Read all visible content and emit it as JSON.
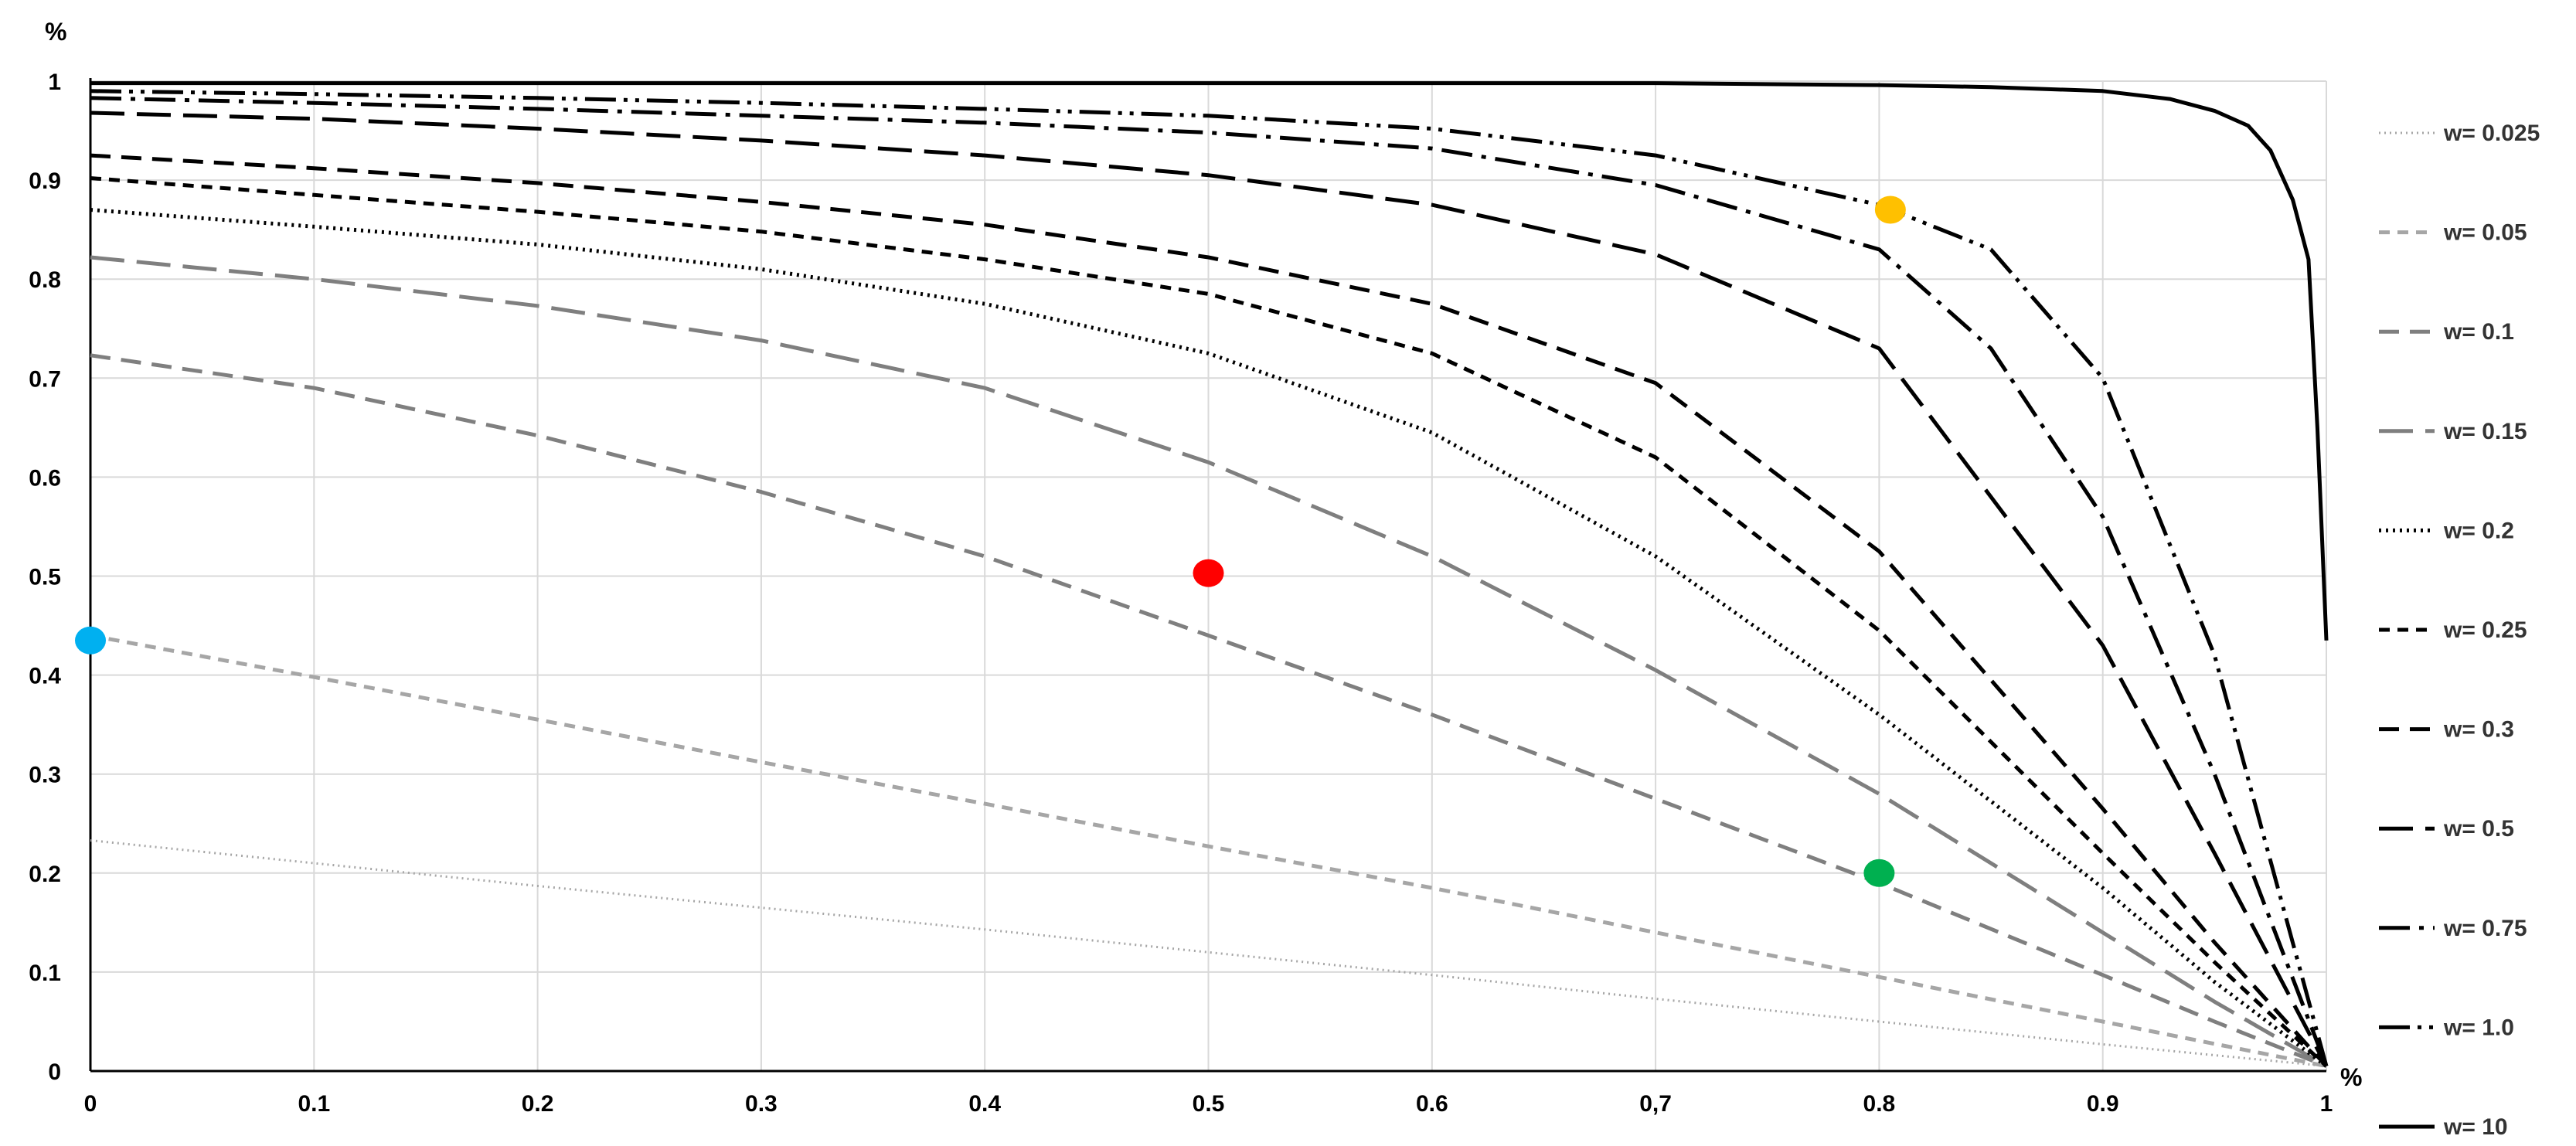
{
  "chart_data": {
    "type": "line",
    "title": "",
    "xlabel": "%",
    "ylabel": "%",
    "xlim": [
      0,
      1
    ],
    "ylim": [
      0,
      1
    ],
    "x_ticks": [
      "0",
      "0.1",
      "0.2",
      "0.3",
      "0.4",
      "0.5",
      "0.6",
      "0,7",
      "0.8",
      "0.9",
      "1"
    ],
    "y_ticks": [
      "0",
      "0.1",
      "0.2",
      "0.3",
      "0.4",
      "0.5",
      "0.6",
      "0.7",
      "0.8",
      "0.9",
      "1"
    ],
    "grid": true,
    "legend_position": "right",
    "series": [
      {
        "name": "w= 0.025",
        "color": "#a6a6a6",
        "style": "dot-fine",
        "x": [
          0,
          0.1,
          0.2,
          0.3,
          0.4,
          0.5,
          0.6,
          0.7,
          0.8,
          0.9,
          1.0
        ],
        "y": [
          0.233,
          0.21,
          0.187,
          0.165,
          0.143,
          0.12,
          0.097,
          0.073,
          0.05,
          0.027,
          0.005
        ]
      },
      {
        "name": "w= 0.05",
        "color": "#a6a6a6",
        "style": "short-dash",
        "x": [
          0,
          0.1,
          0.2,
          0.3,
          0.4,
          0.5,
          0.6,
          0.7,
          0.8,
          0.9,
          1.0
        ],
        "y": [
          0.44,
          0.398,
          0.355,
          0.312,
          0.27,
          0.227,
          0.185,
          0.14,
          0.095,
          0.05,
          0.005
        ]
      },
      {
        "name": "w= 0.1",
        "color": "#7f7f7f",
        "style": "medium-dash",
        "x": [
          0,
          0.1,
          0.2,
          0.3,
          0.4,
          0.5,
          0.6,
          0.7,
          0.8,
          0.9,
          0.95,
          1.0
        ],
        "y": [
          0.723,
          0.69,
          0.642,
          0.585,
          0.52,
          0.44,
          0.36,
          0.275,
          0.19,
          0.097,
          0.05,
          0.005
        ]
      },
      {
        "name": "w= 0.15",
        "color": "#7f7f7f",
        "style": "long-dash",
        "x": [
          0,
          0.1,
          0.2,
          0.3,
          0.4,
          0.5,
          0.6,
          0.7,
          0.8,
          0.9,
          0.95,
          1.0
        ],
        "y": [
          0.822,
          0.8,
          0.773,
          0.738,
          0.69,
          0.615,
          0.52,
          0.405,
          0.28,
          0.14,
          0.07,
          0.005
        ]
      },
      {
        "name": "w= 0.2",
        "color": "#000000",
        "style": "dot",
        "x": [
          0,
          0.1,
          0.2,
          0.3,
          0.4,
          0.5,
          0.6,
          0.7,
          0.8,
          0.9,
          0.95,
          1.0
        ],
        "y": [
          0.87,
          0.853,
          0.835,
          0.81,
          0.775,
          0.725,
          0.645,
          0.52,
          0.36,
          0.185,
          0.09,
          0.005
        ]
      },
      {
        "name": "w= 0.25",
        "color": "#000000",
        "style": "short-dash",
        "x": [
          0,
          0.1,
          0.2,
          0.3,
          0.4,
          0.5,
          0.6,
          0.7,
          0.8,
          0.9,
          0.95,
          1.0
        ],
        "y": [
          0.902,
          0.885,
          0.868,
          0.848,
          0.82,
          0.785,
          0.725,
          0.62,
          0.445,
          0.22,
          0.11,
          0.005
        ]
      },
      {
        "name": "w= 0.3",
        "color": "#000000",
        "style": "medium-dash",
        "x": [
          0,
          0.1,
          0.2,
          0.3,
          0.4,
          0.5,
          0.6,
          0.7,
          0.8,
          0.9,
          0.95,
          1.0
        ],
        "y": [
          0.925,
          0.912,
          0.897,
          0.878,
          0.855,
          0.822,
          0.775,
          0.695,
          0.525,
          0.265,
          0.13,
          0.005
        ]
      },
      {
        "name": "w= 0.5",
        "color": "#000000",
        "style": "long-dash",
        "x": [
          0,
          0.1,
          0.2,
          0.3,
          0.4,
          0.5,
          0.6,
          0.7,
          0.8,
          0.9,
          0.95,
          1.0
        ],
        "y": [
          0.968,
          0.962,
          0.952,
          0.94,
          0.925,
          0.905,
          0.875,
          0.825,
          0.73,
          0.43,
          0.22,
          0.005
        ]
      },
      {
        "name": "w= 0.75",
        "color": "#000000",
        "style": "dash-dot",
        "x": [
          0,
          0.1,
          0.2,
          0.3,
          0.4,
          0.5,
          0.6,
          0.7,
          0.8,
          0.85,
          0.9,
          0.95,
          1.0
        ],
        "y": [
          0.983,
          0.978,
          0.972,
          0.965,
          0.958,
          0.948,
          0.932,
          0.895,
          0.83,
          0.73,
          0.56,
          0.3,
          0.005
        ]
      },
      {
        "name": "w= 1.0",
        "color": "#000000",
        "style": "dash-dot-dot",
        "x": [
          0,
          0.1,
          0.2,
          0.3,
          0.4,
          0.5,
          0.6,
          0.7,
          0.8,
          0.85,
          0.9,
          0.95,
          1.0
        ],
        "y": [
          0.99,
          0.987,
          0.983,
          0.978,
          0.972,
          0.965,
          0.952,
          0.925,
          0.875,
          0.83,
          0.7,
          0.42,
          0.005
        ]
      },
      {
        "name": "w= 10",
        "color": "#000000",
        "style": "solid",
        "x": [
          0,
          0.1,
          0.2,
          0.3,
          0.4,
          0.5,
          0.6,
          0.7,
          0.8,
          0.85,
          0.9,
          0.93,
          0.95,
          0.965,
          0.975,
          0.985,
          0.992,
          0.996,
          1.0
        ],
        "y": [
          0.998,
          0.998,
          0.998,
          0.998,
          0.998,
          0.998,
          0.998,
          0.998,
          0.996,
          0.994,
          0.99,
          0.982,
          0.97,
          0.955,
          0.93,
          0.88,
          0.82,
          0.65,
          0.435
        ]
      }
    ],
    "markers": [
      {
        "name": "blue-point",
        "x": 0.0,
        "y": 0.435,
        "color": "#00b0f0"
      },
      {
        "name": "red-point",
        "x": 0.5,
        "y": 0.503,
        "color": "#ff0000"
      },
      {
        "name": "orange-point",
        "x": 0.805,
        "y": 0.87,
        "color": "#ffc000"
      },
      {
        "name": "green-point",
        "x": 0.8,
        "y": 0.2,
        "color": "#00b050"
      }
    ]
  }
}
